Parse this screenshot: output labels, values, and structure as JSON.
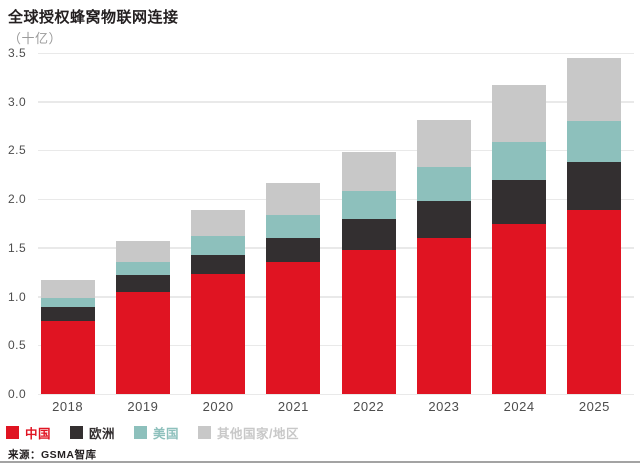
{
  "chart_data": {
    "type": "bar",
    "stacked": true,
    "title": "全球授权蜂窝物联网连接",
    "unit_label": "（十亿）",
    "categories": [
      "2018",
      "2019",
      "2020",
      "2021",
      "2022",
      "2023",
      "2024",
      "2025"
    ],
    "series": [
      {
        "name": "中国",
        "color": "#e01422",
        "values": [
          0.75,
          1.05,
          1.23,
          1.35,
          1.48,
          1.6,
          1.75,
          1.89
        ]
      },
      {
        "name": "欧洲",
        "color": "#332f30",
        "values": [
          0.14,
          0.17,
          0.2,
          0.25,
          0.32,
          0.38,
          0.45,
          0.49
        ]
      },
      {
        "name": "美国",
        "color": "#8dc0bc",
        "values": [
          0.1,
          0.14,
          0.19,
          0.24,
          0.28,
          0.35,
          0.39,
          0.42
        ]
      },
      {
        "name": "其他国家/地区",
        "color": "#c8c8c8",
        "values": [
          0.18,
          0.21,
          0.27,
          0.33,
          0.4,
          0.48,
          0.58,
          0.65
        ]
      }
    ],
    "totals": [
      1.17,
      1.57,
      1.89,
      2.17,
      2.48,
      2.81,
      3.17,
      3.45
    ],
    "xlabel": "",
    "ylabel": "",
    "ylim": [
      0,
      3.5
    ],
    "yticks": [
      "0.0",
      "0.5",
      "1.0",
      "1.5",
      "2.0",
      "2.5",
      "3.0",
      "3.5"
    ],
    "grid": true,
    "legend_position": "bottom",
    "source": "来源：GSMA智库"
  },
  "colors": {
    "gridline": "#e9e9e9",
    "axis_text": "#4d4d4d",
    "title_text": "#231f20",
    "subtitle_text": "#9b9b9b",
    "bottom_rule": "#a3a3a3"
  }
}
